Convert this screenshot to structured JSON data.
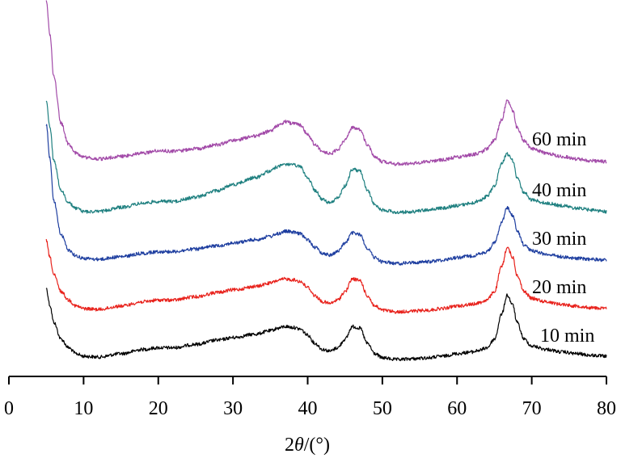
{
  "chart_data": {
    "type": "line",
    "xlabel_prefix": "2",
    "xlabel_symbol": "θ",
    "xlabel_suffix": "/(°)",
    "xlim": [
      0,
      80
    ],
    "x_ticks": [
      0,
      10,
      20,
      30,
      40,
      50,
      60,
      70,
      80
    ],
    "y_axis": "none",
    "grid": false,
    "legend": "labels next to curves at right",
    "series": [
      {
        "name": "10 min",
        "color": "#000000",
        "x": [
          5,
          5.5,
          6,
          7,
          8,
          9,
          10,
          12,
          15,
          18,
          20,
          22,
          25,
          28,
          30,
          33,
          35,
          36,
          37,
          38,
          39,
          40,
          41,
          42,
          43,
          44,
          45,
          46,
          47,
          48,
          49,
          50,
          52,
          54,
          56,
          58,
          60,
          62,
          63,
          64,
          65,
          66,
          66.7,
          67.5,
          68,
          69,
          70,
          72,
          74,
          76,
          78,
          80
        ],
        "y_offset": [
          80,
          60,
          40,
          20,
          10,
          3,
          0,
          -1,
          3,
          8,
          10,
          10,
          14,
          19,
          22,
          26,
          30,
          33,
          35,
          34,
          32,
          25,
          15,
          8,
          6,
          10,
          20,
          35,
          33,
          15,
          3,
          -2,
          -4,
          -3,
          -2,
          0,
          3,
          5,
          7,
          10,
          20,
          50,
          72,
          60,
          40,
          20,
          12,
          8,
          5,
          3,
          1,
          0
        ]
      },
      {
        "name": "20 min",
        "color": "#e8221c",
        "x": [
          5,
          5.5,
          6,
          7,
          8,
          9,
          10,
          12,
          15,
          18,
          20,
          22,
          25,
          28,
          30,
          33,
          35,
          36,
          37,
          38,
          39,
          40,
          41,
          42,
          43,
          44,
          45,
          46,
          47,
          48,
          49,
          50,
          52,
          54,
          56,
          58,
          60,
          62,
          63,
          64,
          65,
          66,
          66.7,
          67.5,
          68,
          69,
          70,
          72,
          74,
          76,
          78,
          80
        ],
        "y_offset": [
          80,
          60,
          40,
          20,
          10,
          3,
          0,
          -1,
          3,
          8,
          10,
          10,
          14,
          19,
          22,
          26,
          30,
          33,
          35,
          34,
          32,
          25,
          15,
          8,
          6,
          10,
          20,
          35,
          33,
          15,
          3,
          -2,
          -4,
          -3,
          -2,
          0,
          3,
          5,
          7,
          10,
          20,
          50,
          72,
          60,
          40,
          20,
          12,
          8,
          5,
          3,
          1,
          0
        ]
      },
      {
        "name": "30 min",
        "color": "#1f3fa0",
        "x": [
          5,
          5.5,
          6,
          7,
          8,
          9,
          10,
          12,
          15,
          18,
          20,
          22,
          25,
          28,
          30,
          33,
          35,
          36,
          37,
          38,
          39,
          40,
          41,
          42,
          43,
          44,
          45,
          46,
          47,
          48,
          49,
          50,
          52,
          54,
          56,
          58,
          60,
          62,
          63,
          64,
          65,
          66,
          66.7,
          67.5,
          68,
          69,
          70,
          72,
          74,
          76,
          78,
          80
        ],
        "y_offset": [
          160,
          120,
          70,
          30,
          12,
          5,
          2,
          1,
          4,
          8,
          10,
          10,
          13,
          17,
          20,
          24,
          28,
          31,
          34,
          33,
          31,
          24,
          15,
          8,
          6,
          10,
          20,
          32,
          30,
          14,
          3,
          -2,
          -4,
          -3,
          -2,
          0,
          3,
          5,
          7,
          10,
          20,
          45,
          62,
          52,
          35,
          18,
          11,
          7,
          4,
          2,
          1,
          0
        ]
      },
      {
        "name": "40 min",
        "color": "#1f8080",
        "x": [
          5,
          5.5,
          6,
          7,
          8,
          9,
          10,
          12,
          15,
          18,
          20,
          22,
          25,
          28,
          30,
          33,
          35,
          36,
          37,
          38,
          39,
          40,
          41,
          42,
          43,
          44,
          45,
          46,
          47,
          48,
          49,
          50,
          52,
          54,
          56,
          58,
          60,
          62,
          63,
          64,
          65,
          66,
          66.7,
          67.5,
          68,
          69,
          70,
          72,
          74,
          76,
          78,
          80
        ],
        "y_offset": [
          130,
          100,
          60,
          25,
          10,
          4,
          0,
          0,
          5,
          10,
          12,
          12,
          17,
          25,
          32,
          40,
          48,
          53,
          56,
          55,
          53,
          40,
          25,
          14,
          10,
          16,
          30,
          50,
          48,
          25,
          8,
          2,
          -1,
          0,
          2,
          4,
          7,
          10,
          13,
          18,
          30,
          58,
          68,
          60,
          40,
          22,
          14,
          10,
          7,
          4,
          2,
          0
        ]
      },
      {
        "name": "60 min",
        "color": "#a24aa8",
        "x": [
          5,
          5.5,
          6,
          7,
          8,
          9,
          10,
          12,
          15,
          18,
          20,
          22,
          25,
          28,
          30,
          33,
          35,
          36,
          37,
          38,
          39,
          40,
          41,
          42,
          43,
          44,
          45,
          46,
          47,
          48,
          49,
          50,
          52,
          54,
          56,
          58,
          60,
          62,
          63,
          64,
          65,
          66,
          66.7,
          67.5,
          68,
          69,
          70,
          72,
          74,
          76,
          78,
          80
        ],
        "y_offset": [
          190,
          150,
          100,
          45,
          20,
          10,
          5,
          3,
          6,
          10,
          13,
          12,
          15,
          20,
          25,
          30,
          36,
          42,
          47,
          45,
          43,
          32,
          20,
          12,
          9,
          14,
          25,
          40,
          38,
          20,
          6,
          0,
          -3,
          -2,
          0,
          2,
          5,
          8,
          10,
          15,
          25,
          50,
          72,
          60,
          40,
          24,
          15,
          10,
          6,
          3,
          1,
          0
        ]
      }
    ]
  }
}
